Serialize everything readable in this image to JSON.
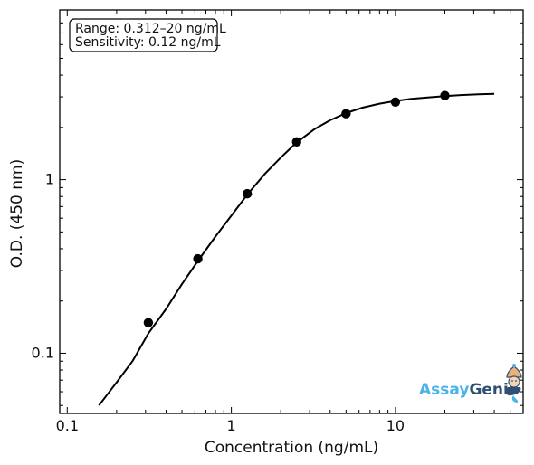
{
  "chart_data": {
    "type": "scatter",
    "title": "",
    "xlabel": "Concentration (ng/mL)",
    "ylabel": "O.D. (450 nm)",
    "xscale": "log",
    "yscale": "log",
    "xlim": [
      0.09,
      60
    ],
    "ylim": [
      0.045,
      9.5
    ],
    "x_ticks": [
      {
        "value": 0.1,
        "label": "0.1"
      },
      {
        "value": 1,
        "label": "1"
      },
      {
        "value": 10,
        "label": "10"
      }
    ],
    "y_ticks": [
      {
        "value": 0.1,
        "label": "0.1"
      },
      {
        "value": 1,
        "label": "1"
      }
    ],
    "grid": false,
    "series": [
      {
        "kind": "points",
        "color": "#000000",
        "x": [
          0.312,
          0.625,
          1.25,
          2.5,
          5,
          10,
          20
        ],
        "y": [
          0.15,
          0.35,
          0.83,
          1.65,
          2.4,
          2.8,
          3.05
        ]
      },
      {
        "kind": "fit-curve",
        "color": "#000000",
        "x": [
          0.156,
          0.2,
          0.25,
          0.312,
          0.4,
          0.5,
          0.625,
          0.8,
          1.0,
          1.25,
          1.6,
          2.0,
          2.5,
          3.2,
          4.0,
          5.0,
          6.3,
          8.0,
          10,
          12.5,
          16,
          20,
          25,
          32,
          40
        ],
        "y": [
          0.05,
          0.068,
          0.09,
          0.13,
          0.18,
          0.25,
          0.34,
          0.47,
          0.62,
          0.82,
          1.08,
          1.34,
          1.64,
          1.95,
          2.2,
          2.42,
          2.6,
          2.74,
          2.84,
          2.92,
          2.98,
          3.03,
          3.07,
          3.1,
          3.12
        ]
      }
    ],
    "annotation": {
      "lines": [
        "Range: 0.312–20 ng/mL",
        "Sensitivity: 0.12 ng/mL"
      ],
      "placement": "top-left"
    }
  },
  "logo": {
    "part1": "Assay",
    "part2": "Genie",
    "color1": "#4ab3e8",
    "color2": "#2f4f73",
    "icon": "genie-mascot-icon"
  }
}
